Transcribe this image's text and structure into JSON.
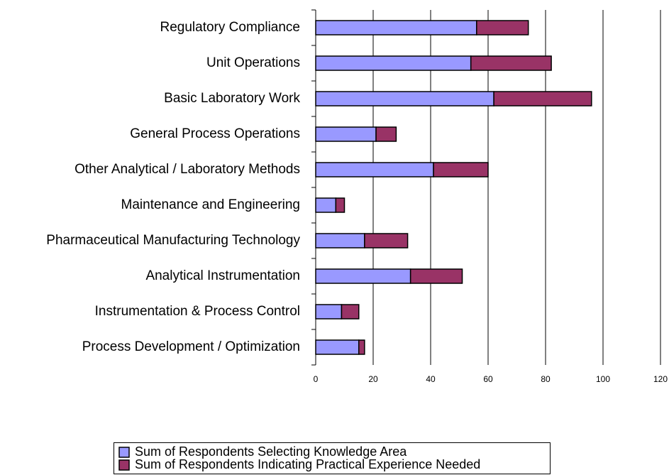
{
  "chart_data": {
    "type": "bar",
    "orientation": "horizontal",
    "stacked": true,
    "categories": [
      "Regulatory Compliance",
      "Unit Operations",
      "Basic Laboratory Work",
      "General Process Operations",
      "Other Analytical / Laboratory Methods",
      "Maintenance and Engineering",
      "Pharmaceutical Manufacturing Technology",
      "Analytical Instrumentation",
      "Instrumentation & Process Control",
      "Process Development / Optimization"
    ],
    "series": [
      {
        "name": "Sum of Respondents Selecting Knowledge Area",
        "color": "#9999ff",
        "values": [
          56,
          54,
          62,
          21,
          41,
          7,
          17,
          33,
          9,
          15
        ]
      },
      {
        "name": "Sum of Respondents Indicating Practical Experience Needed",
        "color": "#993366",
        "values": [
          18,
          28,
          34,
          7,
          19,
          3,
          15,
          18,
          6,
          2
        ]
      }
    ],
    "xlim": [
      0,
      120
    ],
    "xticks": [
      0,
      20,
      40,
      60,
      80,
      100,
      120
    ],
    "grid": true,
    "legend": "bottom"
  }
}
